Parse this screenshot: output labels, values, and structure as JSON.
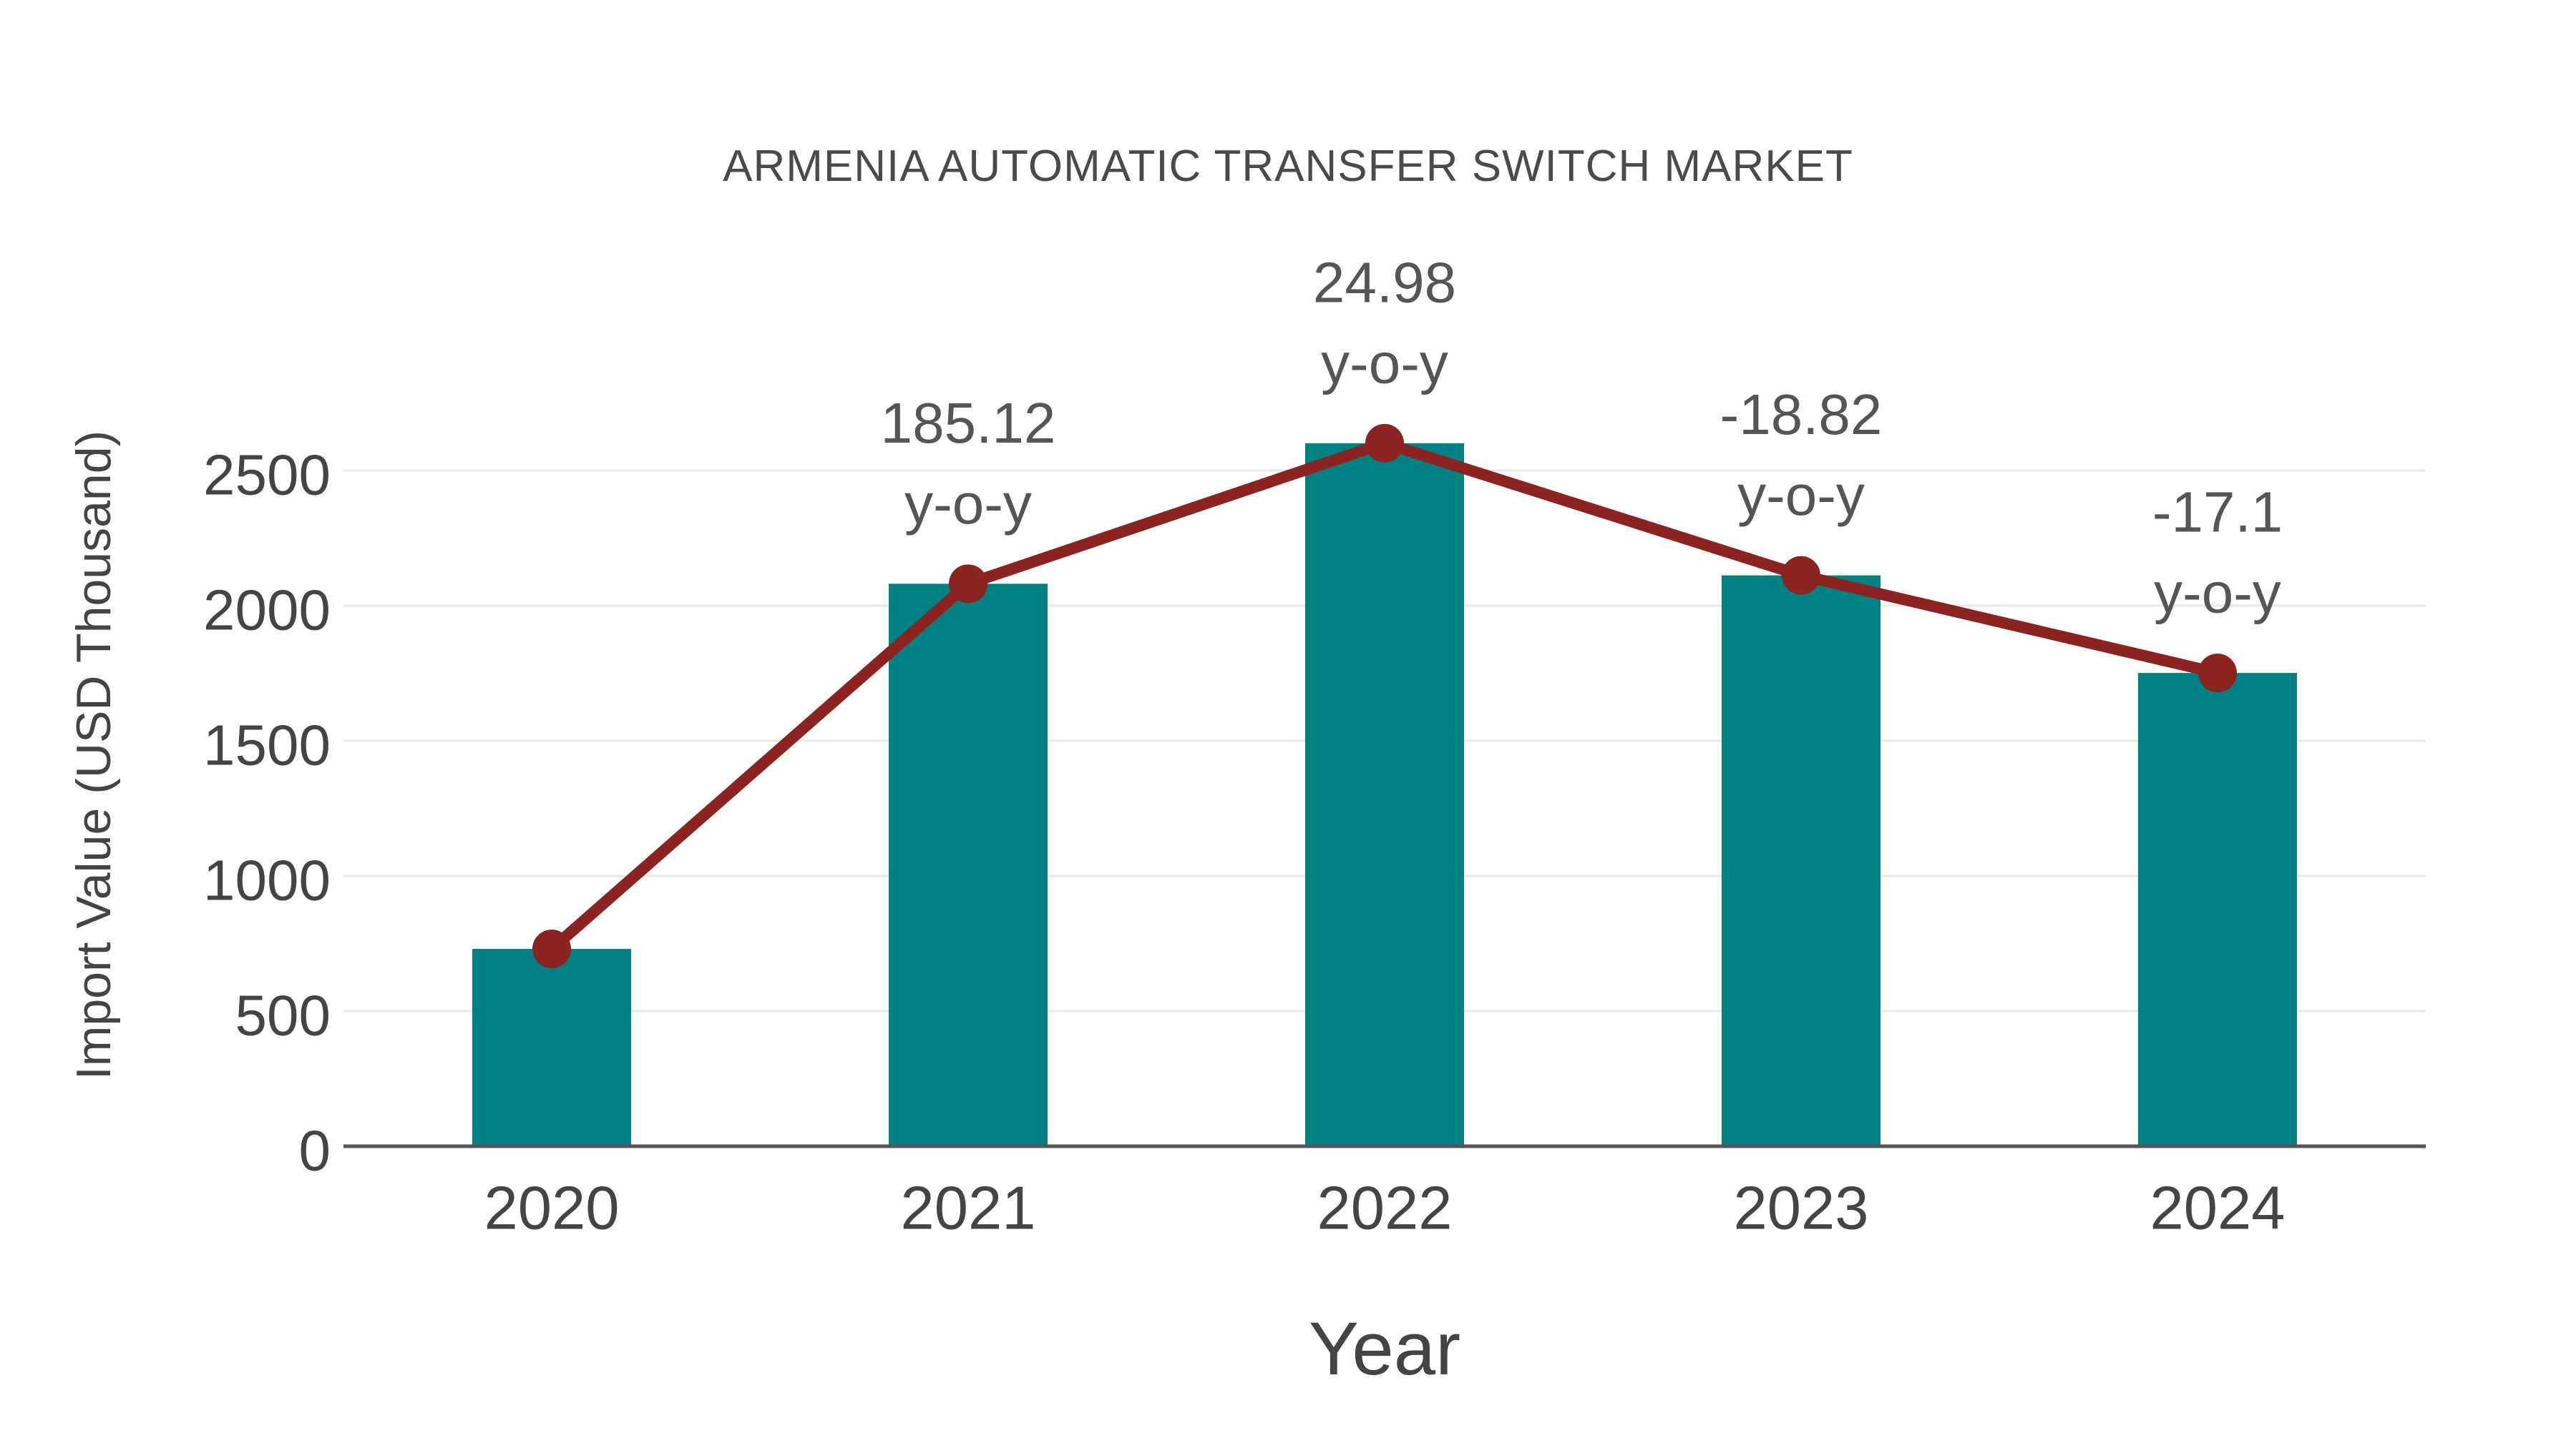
{
  "page": {
    "background": "#ffffff"
  },
  "chart_data": {
    "type": "bar",
    "title": "ARMENIA AUTOMATIC TRANSFER SWITCH MARKET",
    "xlabel": "Year",
    "ylabel": "Import Value (USD Thousand)",
    "categories": [
      "2020",
      "2021",
      "2022",
      "2023",
      "2024"
    ],
    "series": [
      {
        "name": "Import Value (USD Thousand)",
        "type": "bar",
        "color": "#008080",
        "values": [
          730,
          2081,
          2601,
          2112,
          1751
        ]
      },
      {
        "name": "Import Value trend line",
        "type": "line",
        "color": "#8b2320",
        "values": [
          730,
          2081,
          2601,
          2112,
          1751
        ]
      }
    ],
    "annotations": [
      {
        "category": "2021",
        "value_label": "185.12",
        "unit_label": "y-o-y"
      },
      {
        "category": "2022",
        "value_label": "24.98",
        "unit_label": "y-o-y"
      },
      {
        "category": "2023",
        "value_label": "-18.82",
        "unit_label": "y-o-y"
      },
      {
        "category": "2024",
        "value_label": "-17.1",
        "unit_label": "y-o-y"
      }
    ],
    "yticks": [
      0,
      500,
      1000,
      1500,
      2000,
      2500
    ],
    "ylim": [
      0,
      2750
    ],
    "grid": true,
    "legend_position": "none",
    "colors": {
      "bar": "#008080",
      "line": "#8b2320",
      "marker": "#8b2320",
      "grid": "#e8e8e8",
      "axis": "#555555",
      "tick_text": "#444444",
      "annotation_text": "#555555"
    }
  }
}
